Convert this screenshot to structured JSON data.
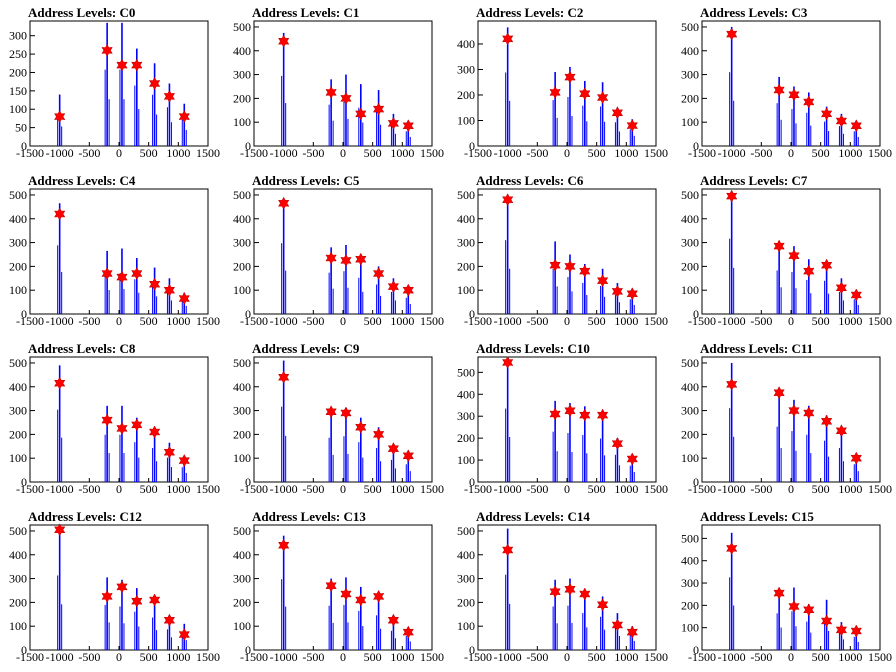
{
  "figure": {
    "x_ticks": [
      "-1500",
      "-1000",
      "-500",
      "0",
      "500",
      "1000",
      "1500"
    ],
    "colors": {
      "histogram": "#0000ff",
      "marker": "#ff0000",
      "axes": "#000000"
    },
    "marker_icon": "star-icon"
  },
  "chart_data": [
    {
      "type": "bar",
      "title": "Address Levels: C0",
      "xlim": [
        -1500,
        1500
      ],
      "ylim": [
        0,
        340
      ],
      "yticks": [
        0,
        50,
        100,
        150,
        200,
        250,
        300
      ],
      "x": [
        -1000,
        -200,
        50,
        300,
        600,
        850,
        1100
      ],
      "peaks": [
        140,
        335,
        335,
        265,
        225,
        170,
        115
      ],
      "markers": [
        80,
        260,
        220,
        220,
        170,
        135,
        80
      ]
    },
    {
      "type": "bar",
      "title": "Address Levels: C1",
      "xlim": [
        -1500,
        1500
      ],
      "ylim": [
        0,
        525
      ],
      "yticks": [
        0,
        100,
        200,
        300,
        400,
        500
      ],
      "x": [
        -1000,
        -200,
        50,
        300,
        600,
        850,
        1100
      ],
      "peaks": [
        475,
        280,
        300,
        260,
        235,
        135,
        100
      ],
      "markers": [
        440,
        225,
        200,
        135,
        155,
        95,
        85
      ]
    },
    {
      "type": "bar",
      "title": "Address Levels: C2",
      "xlim": [
        -1500,
        1500
      ],
      "ylim": [
        0,
        490
      ],
      "yticks": [
        0,
        100,
        200,
        300,
        400
      ],
      "x": [
        -1000,
        -200,
        50,
        300,
        600,
        850,
        1100
      ],
      "peaks": [
        465,
        290,
        310,
        255,
        250,
        150,
        105
      ],
      "markers": [
        420,
        210,
        270,
        205,
        190,
        130,
        80
      ]
    },
    {
      "type": "bar",
      "title": "Address Levels: C3",
      "xlim": [
        -1500,
        1500
      ],
      "ylim": [
        0,
        525
      ],
      "yticks": [
        0,
        100,
        200,
        300,
        400,
        500
      ],
      "x": [
        -1000,
        -200,
        50,
        300,
        600,
        850,
        1100
      ],
      "peaks": [
        500,
        290,
        250,
        225,
        165,
        135,
        100
      ],
      "markers": [
        470,
        235,
        215,
        185,
        135,
        105,
        85
      ]
    },
    {
      "type": "bar",
      "title": "Address Levels: C4",
      "xlim": [
        -1500,
        1500
      ],
      "ylim": [
        0,
        525
      ],
      "yticks": [
        0,
        100,
        200,
        300,
        400,
        500
      ],
      "x": [
        -1000,
        -200,
        50,
        300,
        600,
        850,
        1100
      ],
      "peaks": [
        465,
        265,
        275,
        235,
        195,
        150,
        90
      ],
      "markers": [
        420,
        170,
        155,
        170,
        125,
        100,
        65
      ]
    },
    {
      "type": "bar",
      "title": "Address Levels: C5",
      "xlim": [
        -1500,
        1500
      ],
      "ylim": [
        0,
        525
      ],
      "yticks": [
        0,
        100,
        200,
        300,
        400,
        500
      ],
      "x": [
        -1000,
        -200,
        50,
        300,
        600,
        850,
        1100
      ],
      "peaks": [
        480,
        280,
        290,
        245,
        200,
        150,
        110
      ],
      "markers": [
        465,
        235,
        225,
        230,
        170,
        115,
        100
      ]
    },
    {
      "type": "bar",
      "title": "Address Levels: C6",
      "xlim": [
        -1500,
        1500
      ],
      "ylim": [
        0,
        525
      ],
      "yticks": [
        0,
        100,
        200,
        300,
        400,
        500
      ],
      "x": [
        -1000,
        -200,
        50,
        300,
        600,
        850,
        1100
      ],
      "peaks": [
        500,
        305,
        250,
        210,
        190,
        130,
        100
      ],
      "markers": [
        480,
        205,
        200,
        180,
        140,
        95,
        85
      ]
    },
    {
      "type": "bar",
      "title": "Address Levels: C7",
      "xlim": [
        -1500,
        1500
      ],
      "ylim": [
        0,
        525
      ],
      "yticks": [
        0,
        100,
        200,
        300,
        400,
        500
      ],
      "x": [
        -1000,
        -200,
        50,
        300,
        600,
        850,
        1100
      ],
      "peaks": [
        510,
        295,
        285,
        230,
        225,
        150,
        100
      ],
      "markers": [
        495,
        285,
        245,
        180,
        205,
        110,
        80
      ]
    },
    {
      "type": "bar",
      "title": "Address Levels: C8",
      "xlim": [
        -1500,
        1500
      ],
      "ylim": [
        0,
        525
      ],
      "yticks": [
        0,
        100,
        200,
        300,
        400,
        500
      ],
      "x": [
        -1000,
        -200,
        50,
        300,
        600,
        850,
        1100
      ],
      "peaks": [
        490,
        320,
        320,
        270,
        230,
        165,
        100
      ],
      "markers": [
        415,
        260,
        225,
        240,
        210,
        125,
        90
      ]
    },
    {
      "type": "bar",
      "title": "Address Levels: C9",
      "xlim": [
        -1500,
        1500
      ],
      "ylim": [
        0,
        525
      ],
      "yticks": [
        0,
        100,
        200,
        300,
        400,
        500
      ],
      "x": [
        -1000,
        -200,
        50,
        300,
        600,
        850,
        1100
      ],
      "peaks": [
        510,
        300,
        310,
        270,
        230,
        150,
        120
      ],
      "markers": [
        440,
        295,
        290,
        230,
        200,
        140,
        110
      ]
    },
    {
      "type": "bar",
      "title": "Address Levels: C10",
      "xlim": [
        -1500,
        1500
      ],
      "ylim": [
        0,
        570
      ],
      "yticks": [
        0,
        100,
        200,
        300,
        400,
        500
      ],
      "x": [
        -1000,
        -200,
        50,
        300,
        600,
        850,
        1100
      ],
      "peaks": [
        540,
        370,
        360,
        345,
        320,
        200,
        120
      ],
      "markers": [
        545,
        310,
        325,
        305,
        305,
        175,
        105
      ]
    },
    {
      "type": "bar",
      "title": "Address Levels: C11",
      "xlim": [
        -1500,
        1500
      ],
      "ylim": [
        0,
        525
      ],
      "yticks": [
        0,
        100,
        200,
        300,
        400,
        500
      ],
      "x": [
        -1000,
        -200,
        50,
        300,
        600,
        850,
        1100
      ],
      "peaks": [
        500,
        375,
        345,
        320,
        280,
        230,
        120
      ],
      "markers": [
        410,
        375,
        300,
        290,
        255,
        215,
        100
      ]
    },
    {
      "type": "bar",
      "title": "Address Levels: C12",
      "xlim": [
        -1500,
        1500
      ],
      "ylim": [
        0,
        525
      ],
      "yticks": [
        0,
        100,
        200,
        300,
        400,
        500
      ],
      "x": [
        -1000,
        -200,
        50,
        300,
        600,
        850,
        1100
      ],
      "peaks": [
        505,
        305,
        295,
        260,
        220,
        140,
        110
      ],
      "markers": [
        505,
        225,
        265,
        205,
        210,
        125,
        65
      ]
    },
    {
      "type": "bar",
      "title": "Address Levels: C13",
      "xlim": [
        -1500,
        1500
      ],
      "ylim": [
        0,
        525
      ],
      "yticks": [
        0,
        100,
        200,
        300,
        400,
        500
      ],
      "x": [
        -1000,
        -200,
        50,
        300,
        600,
        850,
        1100
      ],
      "peaks": [
        480,
        300,
        305,
        265,
        235,
        130,
        95
      ],
      "markers": [
        440,
        270,
        235,
        210,
        225,
        125,
        75
      ]
    },
    {
      "type": "bar",
      "title": "Address Levels: C14",
      "xlim": [
        -1500,
        1500
      ],
      "ylim": [
        0,
        525
      ],
      "yticks": [
        0,
        100,
        200,
        300,
        400,
        500
      ],
      "x": [
        -1000,
        -200,
        50,
        300,
        600,
        850,
        1100
      ],
      "peaks": [
        510,
        295,
        300,
        250,
        225,
        155,
        100
      ],
      "markers": [
        420,
        245,
        255,
        235,
        190,
        105,
        75
      ]
    },
    {
      "type": "bar",
      "title": "Address Levels: C15",
      "xlim": [
        -1500,
        1500
      ],
      "ylim": [
        0,
        560
      ],
      "yticks": [
        0,
        100,
        200,
        300,
        400,
        500
      ],
      "x": [
        -1000,
        -200,
        50,
        300,
        600,
        850,
        1100
      ],
      "peaks": [
        525,
        265,
        280,
        205,
        225,
        125,
        95
      ],
      "markers": [
        455,
        255,
        195,
        180,
        130,
        90,
        85
      ]
    }
  ]
}
